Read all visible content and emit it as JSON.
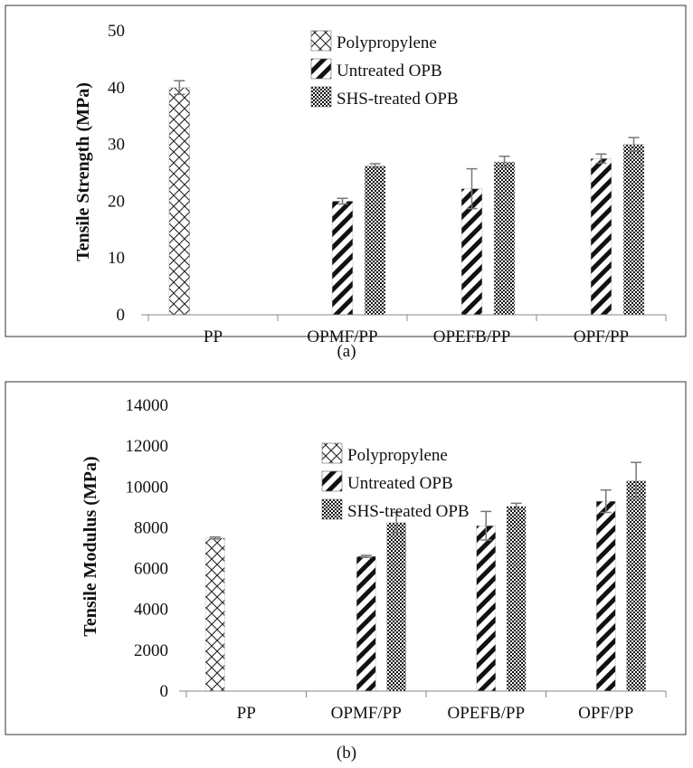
{
  "chart_data": [
    {
      "type": "bar",
      "panel_label": "(a)",
      "ylabel": "Tensile Strength (MPa)",
      "categories": [
        "PP",
        "OPMF/PP",
        "OPEFB/PP",
        "OPF/PP"
      ],
      "ylim": [
        0,
        50
      ],
      "yticks": [
        0,
        10,
        20,
        30,
        40,
        50
      ],
      "legend_position": "top-center",
      "series": [
        {
          "name": "Polypropylene",
          "pattern": "crosshatch",
          "values": [
            40,
            null,
            null,
            null
          ],
          "errors": [
            1.2,
            null,
            null,
            null
          ]
        },
        {
          "name": "Untreated OPB",
          "pattern": "diagonal",
          "values": [
            null,
            20,
            22.2,
            27.5
          ],
          "errors": [
            null,
            0.5,
            3.5,
            0.8
          ]
        },
        {
          "name": "SHS-treated OPB",
          "pattern": "dots",
          "values": [
            null,
            26.2,
            26.9,
            30
          ],
          "errors": [
            null,
            0.4,
            1,
            1.2
          ]
        }
      ]
    },
    {
      "type": "bar",
      "panel_label": "(b)",
      "ylabel": "Tensile Modulus (MPa)",
      "categories": [
        "PP",
        "OPMF/PP",
        "OPEFB/PP",
        "OPF/PP"
      ],
      "ylim": [
        0,
        14000
      ],
      "yticks": [
        0,
        2000,
        4000,
        6000,
        8000,
        10000,
        12000,
        14000
      ],
      "legend_position": "top-center",
      "series": [
        {
          "name": "Polypropylene",
          "pattern": "crosshatch",
          "values": [
            7500,
            null,
            null,
            null
          ],
          "errors": [
            50,
            null,
            null,
            null
          ]
        },
        {
          "name": "Untreated OPB",
          "pattern": "diagonal",
          "values": [
            null,
            6600,
            8100,
            9300
          ],
          "errors": [
            null,
            50,
            700,
            550
          ]
        },
        {
          "name": "SHS-treated OPB",
          "pattern": "dots",
          "values": [
            null,
            8250,
            9050,
            10300
          ],
          "errors": [
            null,
            500,
            150,
            900
          ]
        }
      ]
    }
  ]
}
